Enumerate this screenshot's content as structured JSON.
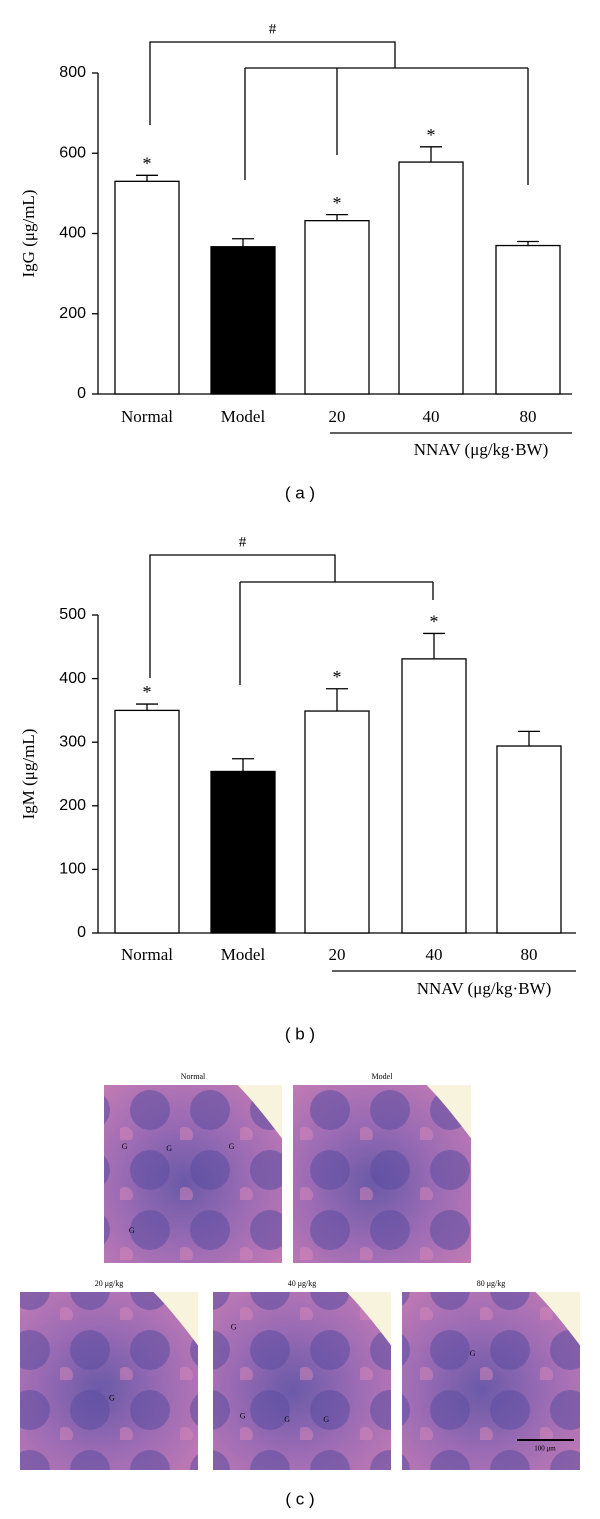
{
  "chart_data": [
    {
      "type": "bar",
      "caption": "( a )",
      "y_label": "IgG (μg/mL)",
      "categories": [
        "Normal",
        "Model",
        "20",
        "40",
        "80"
      ],
      "values": [
        530,
        367,
        432,
        578,
        370
      ],
      "errors": [
        15,
        20,
        15,
        38,
        10
      ],
      "colors": [
        "#ffffff",
        "#000000",
        "#ffffff",
        "#ffffff",
        "#ffffff"
      ],
      "significance": [
        "*",
        null,
        "*",
        "*",
        null
      ],
      "bracket_label": "#",
      "group_label": "NNAV (μg/kg·BW)",
      "ylim": [
        0,
        800
      ],
      "yticks": [
        0,
        200,
        400,
        600,
        800
      ]
    },
    {
      "type": "bar",
      "caption": "( b )",
      "y_label": "IgM (μg/mL)",
      "categories": [
        "Normal",
        "Model",
        "20",
        "40",
        "80"
      ],
      "values": [
        350,
        254,
        349,
        431,
        294
      ],
      "errors": [
        10,
        20,
        35,
        40,
        23
      ],
      "colors": [
        "#ffffff",
        "#000000",
        "#ffffff",
        "#ffffff",
        "#ffffff"
      ],
      "significance": [
        "*",
        null,
        "*",
        "*",
        null
      ],
      "bracket_label": "#",
      "group_label": "NNAV (μg/kg·BW)",
      "ylim": [
        0,
        500
      ],
      "yticks": [
        0,
        100,
        200,
        300,
        400,
        500
      ]
    }
  ],
  "figure_c": {
    "caption": "( c )",
    "images": [
      {
        "title": "Normal",
        "labels": [
          "G",
          "G",
          "G",
          "G"
        ]
      },
      {
        "title": "Model",
        "labels": []
      },
      {
        "title": "20 μg/kg",
        "labels": [
          "G"
        ]
      },
      {
        "title": "40 μg/kg",
        "labels": [
          "G",
          "G",
          "G",
          "G"
        ]
      },
      {
        "title": "80 μg/kg",
        "labels": [
          "G"
        ],
        "scale_bar": "100 μm"
      }
    ]
  }
}
